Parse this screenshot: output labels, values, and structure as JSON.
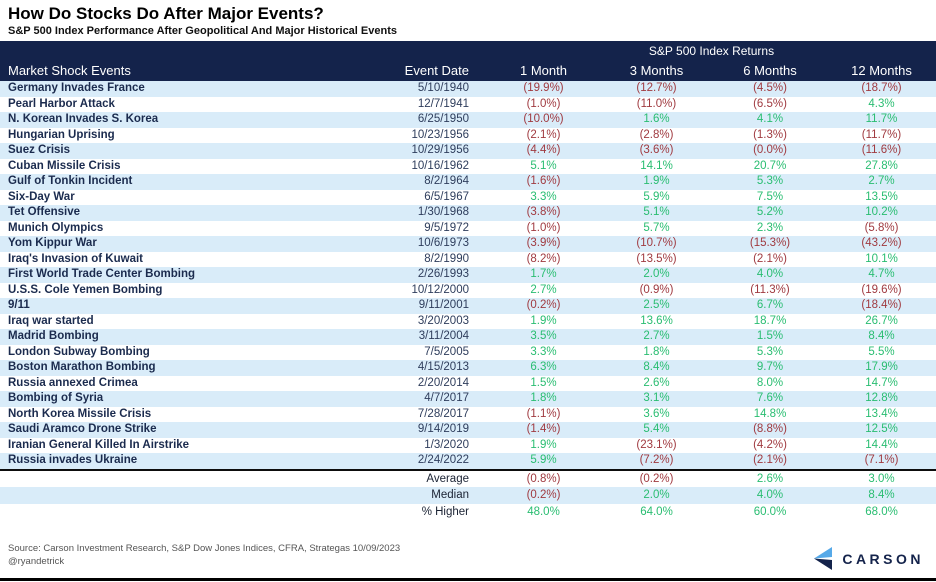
{
  "title": "How Do Stocks Do After Major Events?",
  "subtitle": "S&P 500 Index Performance After Geopolitical And Major Historical Events",
  "chart_data": {
    "type": "table",
    "group_header": "S&P 500 Index Returns",
    "columns": [
      "Market Shock Events",
      "Event Date",
      "1 Month",
      "3 Months",
      "6 Months",
      "12 Months"
    ],
    "rows": [
      {
        "event": "Germany Invades France",
        "date": "5/10/1940",
        "returns": [
          "(19.9%)",
          "(12.7%)",
          "(4.5%)",
          "(18.7%)"
        ]
      },
      {
        "event": "Pearl Harbor Attack",
        "date": "12/7/1941",
        "returns": [
          "(1.0%)",
          "(11.0%)",
          "(6.5%)",
          "4.3%"
        ]
      },
      {
        "event": "N. Korean Invades S. Korea",
        "date": "6/25/1950",
        "returns": [
          "(10.0%)",
          "1.6%",
          "4.1%",
          "11.7%"
        ]
      },
      {
        "event": "Hungarian Uprising",
        "date": "10/23/1956",
        "returns": [
          "(2.1%)",
          "(2.8%)",
          "(1.3%)",
          "(11.7%)"
        ]
      },
      {
        "event": "Suez Crisis",
        "date": "10/29/1956",
        "returns": [
          "(4.4%)",
          "(3.6%)",
          "(0.0%)",
          "(11.6%)"
        ]
      },
      {
        "event": "Cuban Missile Crisis",
        "date": "10/16/1962",
        "returns": [
          "5.1%",
          "14.1%",
          "20.7%",
          "27.8%"
        ]
      },
      {
        "event": "Gulf of Tonkin Incident",
        "date": "8/2/1964",
        "returns": [
          "(1.6%)",
          "1.9%",
          "5.3%",
          "2.7%"
        ]
      },
      {
        "event": "Six-Day War",
        "date": "6/5/1967",
        "returns": [
          "3.3%",
          "5.9%",
          "7.5%",
          "13.5%"
        ]
      },
      {
        "event": "Tet Offensive",
        "date": "1/30/1968",
        "returns": [
          "(3.8%)",
          "5.1%",
          "5.2%",
          "10.2%"
        ]
      },
      {
        "event": "Munich Olympics",
        "date": "9/5/1972",
        "returns": [
          "(1.0%)",
          "5.7%",
          "2.3%",
          "(5.8%)"
        ]
      },
      {
        "event": "Yom Kippur War",
        "date": "10/6/1973",
        "returns": [
          "(3.9%)",
          "(10.7%)",
          "(15.3%)",
          "(43.2%)"
        ]
      },
      {
        "event": "Iraq's Invasion of Kuwait",
        "date": "8/2/1990",
        "returns": [
          "(8.2%)",
          "(13.5%)",
          "(2.1%)",
          "10.1%"
        ]
      },
      {
        "event": "First World Trade Center Bombing",
        "date": "2/26/1993",
        "returns": [
          "1.7%",
          "2.0%",
          "4.0%",
          "4.7%"
        ]
      },
      {
        "event": "U.S.S. Cole Yemen Bombing",
        "date": "10/12/2000",
        "returns": [
          "2.7%",
          "(0.9%)",
          "(11.3%)",
          "(19.6%)"
        ]
      },
      {
        "event": "9/11",
        "date": "9/11/2001",
        "returns": [
          "(0.2%)",
          "2.5%",
          "6.7%",
          "(18.4%)"
        ]
      },
      {
        "event": "Iraq war started",
        "date": "3/20/2003",
        "returns": [
          "1.9%",
          "13.6%",
          "18.7%",
          "26.7%"
        ]
      },
      {
        "event": "Madrid Bombing",
        "date": "3/11/2004",
        "returns": [
          "3.5%",
          "2.7%",
          "1.5%",
          "8.4%"
        ]
      },
      {
        "event": "London Subway Bombing",
        "date": "7/5/2005",
        "returns": [
          "3.3%",
          "1.8%",
          "5.3%",
          "5.5%"
        ]
      },
      {
        "event": "Boston Marathon Bombing",
        "date": "4/15/2013",
        "returns": [
          "6.3%",
          "8.4%",
          "9.7%",
          "17.9%"
        ]
      },
      {
        "event": "Russia annexed Crimea",
        "date": "2/20/2014",
        "returns": [
          "1.5%",
          "2.6%",
          "8.0%",
          "14.7%"
        ]
      },
      {
        "event": "Bombing of Syria",
        "date": "4/7/2017",
        "returns": [
          "1.8%",
          "3.1%",
          "7.6%",
          "12.8%"
        ]
      },
      {
        "event": "North Korea Missile Crisis",
        "date": "7/28/2017",
        "returns": [
          "(1.1%)",
          "3.6%",
          "14.8%",
          "13.4%"
        ]
      },
      {
        "event": "Saudi Aramco Drone Strike",
        "date": "9/14/2019",
        "returns": [
          "(1.4%)",
          "5.4%",
          "(8.8%)",
          "12.5%"
        ]
      },
      {
        "event": "Iranian General Killed In Airstrike",
        "date": "1/3/2020",
        "returns": [
          "1.9%",
          "(23.1%)",
          "(4.2%)",
          "14.4%"
        ]
      },
      {
        "event": "Russia invades Ukraine",
        "date": "2/24/2022",
        "returns": [
          "5.9%",
          "(7.2%)",
          "(2.1%)",
          "(7.1%)"
        ]
      }
    ],
    "summary": [
      {
        "label": "Average",
        "values": [
          "(0.8%)",
          "(0.2%)",
          "2.6%",
          "3.0%"
        ]
      },
      {
        "label": "Median",
        "values": [
          "(0.2%)",
          "2.0%",
          "4.0%",
          "8.4%"
        ]
      },
      {
        "label": "% Higher",
        "values": [
          "48.0%",
          "64.0%",
          "60.0%",
          "68.0%"
        ]
      }
    ]
  },
  "footer": {
    "source": "Source: Carson Investment Research, S&P Dow Jones Indices, CFRA, Strategas 10/09/2023",
    "handle": "@ryandetrick",
    "logo_text": "CARSON"
  },
  "colors": {
    "header_bg": "#14234B",
    "row_alt": "#D9ECF9",
    "positive": "#29BD71",
    "negative": "#A03A40",
    "event_text": "#1B2B4E",
    "logo_light_blue": "#56A9E8",
    "logo_navy": "#14234B"
  }
}
